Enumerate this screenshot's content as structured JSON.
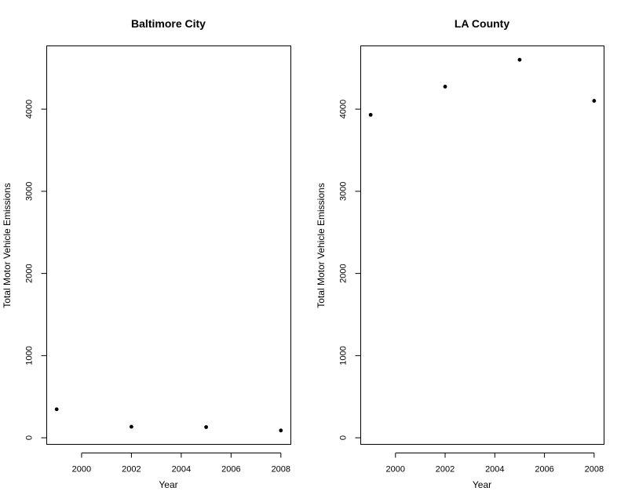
{
  "chart_data": [
    {
      "type": "scatter",
      "title": "Baltimore City",
      "xlabel": "Year",
      "ylabel": "Total Motor Vehicle Emissions",
      "xlim": [
        1998.6,
        2008.4
      ],
      "ylim": [
        -80,
        4770
      ],
      "x_ticks": [
        2000,
        2002,
        2004,
        2006,
        2008
      ],
      "y_ticks": [
        0,
        1000,
        2000,
        3000,
        4000
      ],
      "grid": false,
      "x": [
        1999,
        2002,
        2005,
        2008
      ],
      "y": [
        347,
        134,
        130,
        89
      ]
    },
    {
      "type": "scatter",
      "title": "LA County",
      "xlabel": "Year",
      "ylabel": "Total Motor Vehicle Emissions",
      "xlim": [
        1998.6,
        2008.4
      ],
      "ylim": [
        -80,
        4770
      ],
      "x_ticks": [
        2000,
        2002,
        2004,
        2006,
        2008
      ],
      "y_ticks": [
        0,
        1000,
        2000,
        3000,
        4000
      ],
      "grid": false,
      "x": [
        1999,
        2002,
        2005,
        2008
      ],
      "y": [
        3931,
        4274,
        4601,
        4101
      ]
    }
  ]
}
